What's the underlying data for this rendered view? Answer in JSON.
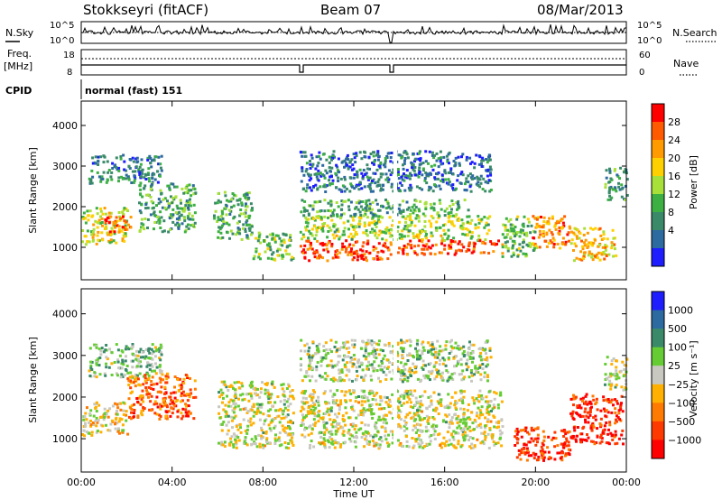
{
  "header": {
    "station": "Stokkseyri (fitACF)",
    "beam": "Beam 07",
    "date": "08/Mar/2013"
  },
  "panels": {
    "noise": {
      "left_label": "N.Sky",
      "right_label": "N.Search",
      "left_ticks": [
        "10^5",
        "10^0"
      ],
      "right_ticks": [
        "10^5",
        "10^0"
      ]
    },
    "freq": {
      "left_label": "Freq.",
      "left_unit": "[MHz]",
      "right_label": "Nave",
      "left_ticks": [
        "18",
        "8"
      ],
      "right_ticks": [
        "60",
        "0"
      ]
    },
    "cpid": {
      "label": "CPID",
      "text": "normal (fast) 151"
    }
  },
  "chart_data": [
    {
      "type": "heatmap",
      "parameter": "power",
      "ylabel": "Slant Range [km]",
      "y_ticks": [
        1000,
        2000,
        3000,
        4000
      ],
      "ylim": [
        200,
        4600
      ],
      "xlim_hours": [
        0,
        24
      ],
      "colorbar": {
        "title": "Power [dB]",
        "ticks": [
          "28",
          "24",
          "20",
          "16",
          "12",
          "8",
          "4"
        ],
        "colors": [
          "#ff0000",
          "#ff5a00",
          "#ff9a00",
          "#ffd000",
          "#a8e03a",
          "#3cb043",
          "#3a8a6a",
          "#2d6aa0",
          "#1d1dff"
        ]
      },
      "bands": [
        {
          "t0": 0.0,
          "t1": 2.0,
          "r0": 1100,
          "r1": 2000,
          "level": 0.55
        },
        {
          "t0": 0.3,
          "t1": 3.5,
          "r0": 2600,
          "r1": 3300,
          "level": 0.25
        },
        {
          "t0": 1.0,
          "t1": 2.2,
          "r0": 1400,
          "r1": 1800,
          "level": 0.85
        },
        {
          "t0": 2.5,
          "t1": 5.0,
          "r0": 1400,
          "r1": 2600,
          "level": 0.35
        },
        {
          "t0": 5.8,
          "t1": 7.5,
          "r0": 1200,
          "r1": 2400,
          "level": 0.35
        },
        {
          "t0": 7.5,
          "t1": 9.3,
          "r0": 700,
          "r1": 1400,
          "level": 0.45
        },
        {
          "t0": 9.6,
          "t1": 13.6,
          "r0": 700,
          "r1": 1200,
          "level": 0.85
        },
        {
          "t0": 9.6,
          "t1": 18.0,
          "r0": 1200,
          "r1": 1800,
          "level": 0.5
        },
        {
          "t0": 9.6,
          "t1": 17.0,
          "r0": 1800,
          "r1": 2200,
          "level": 0.35
        },
        {
          "t0": 13.9,
          "t1": 18.5,
          "r0": 850,
          "r1": 1200,
          "level": 0.85
        },
        {
          "t0": 9.6,
          "t1": 18.0,
          "r0": 2400,
          "r1": 3400,
          "level": 0.2
        },
        {
          "t0": 18.5,
          "t1": 20.0,
          "r0": 800,
          "r1": 1800,
          "level": 0.4
        },
        {
          "t0": 19.8,
          "t1": 21.5,
          "r0": 1000,
          "r1": 1800,
          "level": 0.75
        },
        {
          "t0": 21.5,
          "t1": 23.5,
          "r0": 700,
          "r1": 1500,
          "level": 0.65
        },
        {
          "t0": 23.0,
          "t1": 24.0,
          "r0": 2200,
          "r1": 3000,
          "level": 0.35
        }
      ]
    },
    {
      "type": "heatmap",
      "parameter": "velocity",
      "ylabel": "Slant Range [km]",
      "xlabel": "Time UT",
      "x_ticks": [
        "00:00",
        "04:00",
        "08:00",
        "12:00",
        "16:00",
        "20:00",
        "00:00"
      ],
      "y_ticks": [
        1000,
        2000,
        3000,
        4000
      ],
      "ylim": [
        200,
        4600
      ],
      "xlim_hours": [
        0,
        24
      ],
      "colorbar": {
        "title": "Velocity [m s⁻¹]",
        "ticks": [
          "1000",
          "500",
          "100",
          "25",
          "−25",
          "−100",
          "−500",
          "−1000"
        ],
        "colors": [
          "#1d1dff",
          "#2d6aa0",
          "#3a8a6a",
          "#66cc33",
          "#c8c8c0",
          "#ffb000",
          "#ff7a00",
          "#ff3a00",
          "#ff0000"
        ]
      },
      "bands": [
        {
          "t0": 0.0,
          "t1": 2.0,
          "r0": 1100,
          "r1": 1900,
          "level": 0.45
        },
        {
          "t0": 0.3,
          "t1": 3.5,
          "r0": 2500,
          "r1": 3300,
          "level": 0.6
        },
        {
          "t0": 2.0,
          "t1": 5.0,
          "r0": 1500,
          "r1": 2600,
          "level": 0.25
        },
        {
          "t0": 6.0,
          "t1": 9.3,
          "r0": 800,
          "r1": 2400,
          "level": 0.5
        },
        {
          "t0": 9.6,
          "t1": 18.5,
          "r0": 800,
          "r1": 2200,
          "level": 0.5
        },
        {
          "t0": 9.6,
          "t1": 18.0,
          "r0": 2400,
          "r1": 3400,
          "level": 0.55
        },
        {
          "t0": 19.0,
          "t1": 21.5,
          "r0": 500,
          "r1": 1300,
          "level": 0.15
        },
        {
          "t0": 21.5,
          "t1": 23.8,
          "r0": 900,
          "r1": 2100,
          "level": 0.1
        },
        {
          "t0": 23.0,
          "t1": 24.0,
          "r0": 2200,
          "r1": 3000,
          "level": 0.5
        }
      ]
    }
  ]
}
